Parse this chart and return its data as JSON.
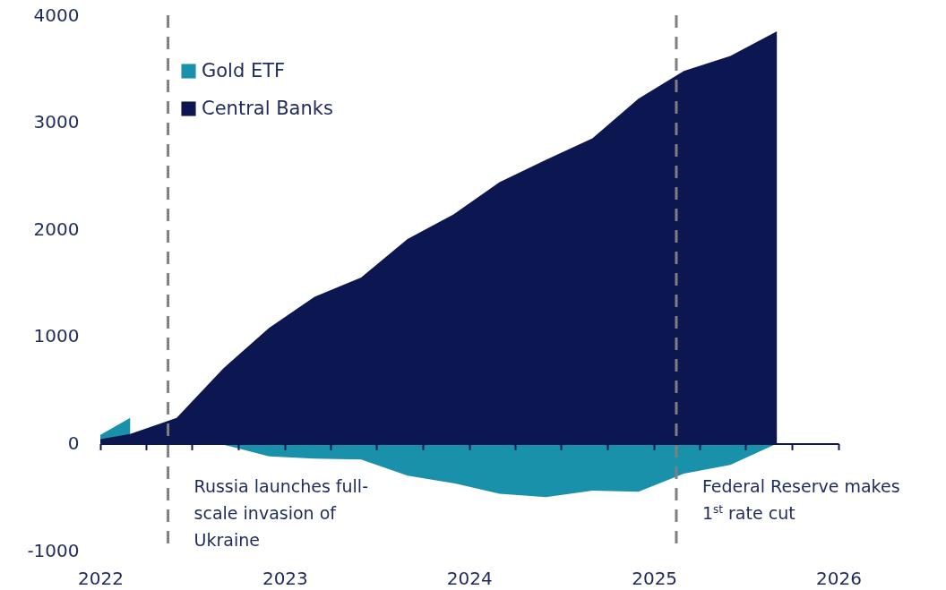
{
  "chart_data": {
    "type": "area",
    "x": [
      "2022-01",
      "2022-03",
      "2022-06",
      "2022-09",
      "2022-12",
      "2023-03",
      "2023-06",
      "2023-09",
      "2023-12",
      "2024-03",
      "2024-06",
      "2024-09",
      "2024-12",
      "2025-03",
      "2025-06",
      "2025-09"
    ],
    "series": [
      {
        "name": "Gold ETF",
        "color": "#1a91ab",
        "values": [
          80,
          240,
          null,
          -10,
          -120,
          -140,
          -150,
          -300,
          -370,
          -470,
          -500,
          -440,
          -450,
          -280,
          -200,
          0
        ]
      },
      {
        "name": "Central Banks",
        "color": "#0c1650",
        "values": [
          40,
          90,
          240,
          700,
          1080,
          1370,
          1550,
          1910,
          2140,
          2440,
          2650,
          2850,
          3220,
          3480,
          3620,
          3850
        ]
      }
    ],
    "xlim": [
      "2022-01",
      "2026-01"
    ],
    "xticks": [
      "2022",
      {
        "value": "2022-04",
        "label": null
      },
      {
        "value": "2022-07",
        "label": null
      },
      {
        "value": "2022-10",
        "label": null
      },
      "2023",
      {
        "value": "2023-04",
        "label": null
      },
      {
        "value": "2023-07",
        "label": null
      },
      {
        "value": "2023-10",
        "label": null
      },
      "2024",
      {
        "value": "2024-04",
        "label": null
      },
      {
        "value": "2024-07",
        "label": null
      },
      {
        "value": "2024-10",
        "label": null
      },
      "2025",
      {
        "value": "2025-04",
        "label": null
      },
      {
        "value": "2025-07",
        "label": null
      },
      {
        "value": "2025-10",
        "label": null
      },
      "2026"
    ],
    "ylim": [
      -1000,
      4000
    ],
    "yticks": [
      -1000,
      0,
      1000,
      2000,
      3000,
      4000
    ],
    "ref_lines": [
      {
        "axis": "x",
        "value": "2022-05-15",
        "label": "Russia launches full-scale invasion of Ukraine",
        "color": "#808080",
        "line_style": "dashed"
      },
      {
        "axis": "x",
        "value": "2025-02-14",
        "label": "Federal Reserve makes 1$^{st}$ rate cut",
        "color": "#808080",
        "line_style": "dashed"
      }
    ],
    "grid": false,
    "legend": "top left"
  }
}
